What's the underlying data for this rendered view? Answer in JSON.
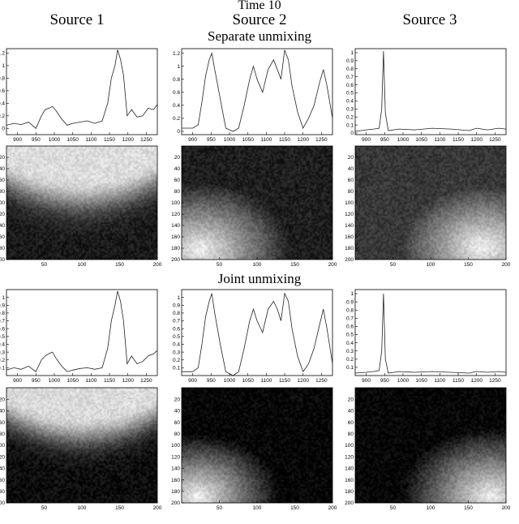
{
  "header": {
    "time_title": "Time 10",
    "columns": [
      "Source 1",
      "Source 2",
      "Source 3"
    ],
    "section_titles": [
      "Separate unmixing",
      "Joint unmixing"
    ]
  },
  "chart_data": {
    "type": "line",
    "spectra_x_ticks": [
      900,
      950,
      1000,
      1050,
      1100,
      1150,
      1200,
      1250
    ],
    "spectra_xlim": [
      870,
      1280
    ],
    "map_ticks": [
      20,
      40,
      60,
      80,
      100,
      120,
      140,
      160,
      180,
      200
    ],
    "map_x_ticks": [
      50,
      100,
      150,
      200
    ],
    "map_range": [
      0,
      200
    ],
    "sections": [
      {
        "title": "Separate unmixing",
        "sources": [
          {
            "name": "Source 1",
            "ylim": [
              -0.1,
              1.27
            ],
            "y_ticks": [
              0,
              0.2,
              0.4,
              0.6,
              0.8,
              1,
              1.2
            ],
            "x": [
              870,
              890,
              910,
              930,
              950,
              965,
              975,
              985,
              995,
              1005,
              1020,
              1035,
              1050,
              1070,
              1090,
              1110,
              1130,
              1145,
              1155,
              1165,
              1172,
              1180,
              1188,
              1198,
              1210,
              1225,
              1240,
              1255,
              1270,
              1280
            ],
            "y": [
              0.05,
              0.08,
              0.06,
              0.1,
              0.0,
              0.2,
              0.3,
              0.32,
              0.35,
              0.28,
              0.15,
              0.05,
              0.08,
              0.1,
              0.12,
              0.08,
              0.12,
              0.4,
              0.8,
              1.0,
              1.25,
              1.1,
              0.85,
              0.2,
              0.3,
              0.18,
              0.2,
              0.32,
              0.3,
              0.38
            ],
            "map": {
              "pattern": "top",
              "cy": 0.2,
              "spread": 0.45,
              "base": 0.1
            }
          },
          {
            "name": "Source 2",
            "ylim": [
              -0.05,
              1.27
            ],
            "y_ticks": [
              0,
              0.2,
              0.4,
              0.6,
              0.8,
              1,
              1.2
            ],
            "x": [
              870,
              900,
              915,
              925,
              935,
              945,
              952,
              960,
              975,
              990,
              1010,
              1025,
              1040,
              1055,
              1065,
              1075,
              1090,
              1105,
              1120,
              1130,
              1140,
              1150,
              1160,
              1170,
              1185,
              1200,
              1215,
              1230,
              1245,
              1255,
              1265,
              1280
            ],
            "y": [
              0.05,
              0.05,
              0.1,
              0.45,
              0.85,
              1.1,
              1.2,
              0.95,
              0.5,
              0.05,
              0.0,
              0.05,
              0.4,
              0.8,
              1.0,
              0.8,
              0.6,
              0.95,
              1.1,
              0.95,
              0.8,
              1.25,
              1.1,
              0.7,
              0.3,
              0.05,
              0.2,
              0.4,
              0.75,
              0.95,
              0.7,
              0.2
            ],
            "map": {
              "pattern": "bottom-left",
              "cx": 0.12,
              "cy": 0.92,
              "spread": 0.6,
              "base": 0.12
            }
          },
          {
            "name": "Source 3",
            "ylim": [
              -0.02,
              1.05
            ],
            "y_ticks": [
              0,
              0.1,
              0.2,
              0.3,
              0.4,
              0.5,
              0.6,
              0.7,
              0.8,
              0.9,
              1
            ],
            "x": [
              870,
              900,
              920,
              935,
              942,
              947,
              952,
              960,
              990,
              1030,
              1080,
              1130,
              1180,
              1200,
              1230,
              1260,
              1280
            ],
            "y": [
              0.02,
              0.04,
              0.05,
              0.06,
              0.3,
              1.02,
              0.25,
              0.03,
              0.05,
              0.04,
              0.06,
              0.05,
              0.03,
              0.06,
              0.04,
              0.06,
              0.05
            ],
            "map": {
              "pattern": "bottom-right",
              "cx": 0.85,
              "cy": 0.9,
              "spread": 0.55,
              "base": 0.22
            }
          }
        ]
      },
      {
        "title": "Joint unmixing",
        "sources": [
          {
            "name": "Source 1",
            "ylim": [
              0,
              1.1
            ],
            "y_ticks": [
              0.1,
              0.2,
              0.3,
              0.4,
              0.5,
              0.6,
              0.7,
              0.8,
              0.9,
              1
            ],
            "x": [
              870,
              890,
              910,
              930,
              950,
              965,
              975,
              985,
              995,
              1005,
              1020,
              1035,
              1050,
              1070,
              1090,
              1110,
              1130,
              1145,
              1155,
              1165,
              1172,
              1180,
              1188,
              1198,
              1210,
              1225,
              1240,
              1255,
              1270,
              1280
            ],
            "y": [
              0.07,
              0.1,
              0.08,
              0.12,
              0.05,
              0.2,
              0.25,
              0.28,
              0.3,
              0.22,
              0.12,
              0.05,
              0.07,
              0.09,
              0.1,
              0.08,
              0.1,
              0.35,
              0.7,
              0.9,
              1.08,
              0.95,
              0.7,
              0.15,
              0.25,
              0.15,
              0.18,
              0.25,
              0.28,
              0.32
            ],
            "map": {
              "pattern": "top",
              "cy": 0.15,
              "spread": 0.42,
              "base": 0.05
            }
          },
          {
            "name": "Source 2",
            "ylim": [
              0,
              1.1
            ],
            "y_ticks": [
              0.1,
              0.2,
              0.3,
              0.4,
              0.5,
              0.6,
              0.7,
              0.8,
              0.9,
              1
            ],
            "x": [
              870,
              900,
              915,
              925,
              935,
              945,
              952,
              960,
              975,
              990,
              1010,
              1025,
              1040,
              1055,
              1065,
              1075,
              1090,
              1105,
              1120,
              1130,
              1140,
              1150,
              1160,
              1170,
              1185,
              1200,
              1215,
              1230,
              1245,
              1255,
              1265,
              1280
            ],
            "y": [
              0.05,
              0.05,
              0.1,
              0.4,
              0.75,
              0.95,
              1.05,
              0.8,
              0.4,
              0.05,
              0.0,
              0.05,
              0.35,
              0.7,
              0.85,
              0.7,
              0.55,
              0.85,
              0.95,
              0.85,
              0.7,
              1.05,
              0.95,
              0.6,
              0.25,
              0.05,
              0.15,
              0.35,
              0.65,
              0.85,
              0.6,
              0.15
            ],
            "map": {
              "pattern": "bottom-left",
              "cx": 0.1,
              "cy": 0.95,
              "spread": 0.55,
              "base": 0.02
            }
          },
          {
            "name": "Source 3",
            "ylim": [
              0,
              1.05
            ],
            "y_ticks": [
              0.1,
              0.2,
              0.3,
              0.4,
              0.5,
              0.6,
              0.7,
              0.8,
              0.9,
              1
            ],
            "x": [
              870,
              900,
              920,
              935,
              942,
              947,
              952,
              960,
              990,
              1030,
              1080,
              1130,
              1180,
              1200,
              1230,
              1260,
              1280
            ],
            "y": [
              0.03,
              0.04,
              0.05,
              0.06,
              0.3,
              1.0,
              0.2,
              0.03,
              0.05,
              0.04,
              0.05,
              0.04,
              0.03,
              0.05,
              0.04,
              0.05,
              0.04
            ],
            "map": {
              "pattern": "bottom-right",
              "cx": 0.9,
              "cy": 0.95,
              "spread": 0.6,
              "base": 0.02
            }
          }
        ]
      }
    ]
  }
}
